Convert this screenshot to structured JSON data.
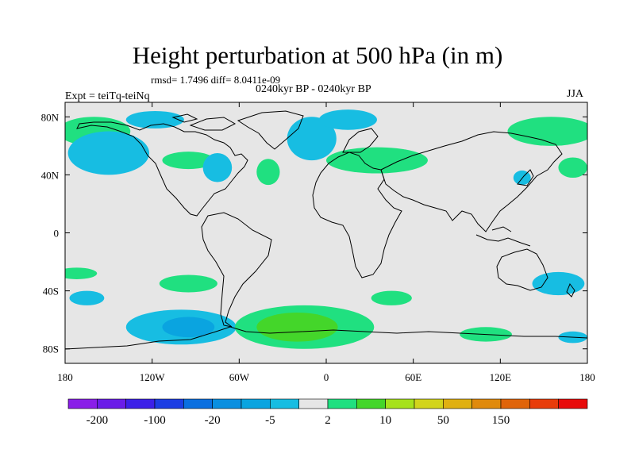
{
  "title": "Height perturbation at 500 hPa (in m)",
  "stats": "rmsd= 1.7496 diff= 8.0411e-09",
  "period": "0240kyr BP - 0240kyr BP",
  "experiment": "Expt = teiTq-teiNq",
  "season": "JJA",
  "axes": {
    "lon_range": [
      -180,
      180
    ],
    "lat_range": [
      -90,
      90
    ],
    "x_ticks": [
      {
        "value": -180,
        "label": "180"
      },
      {
        "value": -120,
        "label": "120W"
      },
      {
        "value": -60,
        "label": "60W"
      },
      {
        "value": 0,
        "label": "0"
      },
      {
        "value": 60,
        "label": "60E"
      },
      {
        "value": 120,
        "label": "120E"
      },
      {
        "value": 180,
        "label": "180"
      }
    ],
    "y_ticks": [
      {
        "value": 80,
        "label": "80N"
      },
      {
        "value": 40,
        "label": "40N"
      },
      {
        "value": 0,
        "label": "0"
      },
      {
        "value": -40,
        "label": "40S"
      },
      {
        "value": -80,
        "label": "80S"
      }
    ]
  },
  "colors": {
    "background": "#e6e6e6",
    "coast": "#000000",
    "light_blue": "#17bde2",
    "mid_blue": "#0aa4e0",
    "light_green": "#20e080",
    "mid_green": "#44d62a"
  },
  "colorbar": {
    "colors": [
      "#8a1ee8",
      "#6a1ce8",
      "#3c20e8",
      "#1c3de3",
      "#0a6fe0",
      "#0a8fe0",
      "#0aa4e0",
      "#17bde2",
      "#e6e6e6",
      "#20e080",
      "#44d62a",
      "#a6e21c",
      "#d2d41c",
      "#e0b012",
      "#e08a0c",
      "#e0640a",
      "#e83c0a",
      "#e80a0a"
    ],
    "labels": [
      {
        "boundary": 1,
        "text": "-200"
      },
      {
        "boundary": 3,
        "text": "-100"
      },
      {
        "boundary": 5,
        "text": "-20"
      },
      {
        "boundary": 7,
        "text": "-5"
      },
      {
        "boundary": 9,
        "text": "2"
      },
      {
        "boundary": 11,
        "text": "10"
      },
      {
        "boundary": 13,
        "text": "50"
      },
      {
        "boundary": 15,
        "text": "150"
      }
    ]
  },
  "anomaly_regions": [
    {
      "name": "n-pacific-positive",
      "color": "light_green",
      "lon": -160,
      "lat": 70,
      "rlon": 25,
      "rlat": 10
    },
    {
      "name": "alaska-negative",
      "color": "light_blue",
      "lon": -150,
      "lat": 55,
      "rlon": 28,
      "rlat": 15
    },
    {
      "name": "arctic-canada-negative",
      "color": "light_blue",
      "lon": -118,
      "lat": 78,
      "rlon": 20,
      "rlat": 6
    },
    {
      "name": "n-america-positive",
      "color": "light_green",
      "lon": -95,
      "lat": 50,
      "rlon": 18,
      "rlat": 6
    },
    {
      "name": "great-lakes-negative",
      "color": "light_blue",
      "lon": -75,
      "lat": 45,
      "rlon": 10,
      "rlat": 10
    },
    {
      "name": "n-atlantic-positive",
      "color": "light_green",
      "lon": -40,
      "lat": 42,
      "rlon": 8,
      "rlat": 9
    },
    {
      "name": "greenland-negative",
      "color": "light_blue",
      "lon": -10,
      "lat": 65,
      "rlon": 17,
      "rlat": 15
    },
    {
      "name": "greenland-sea-negative",
      "color": "light_blue",
      "lon": 15,
      "lat": 78,
      "rlon": 20,
      "rlat": 7
    },
    {
      "name": "eurasia-positive",
      "color": "light_green",
      "lon": 35,
      "lat": 50,
      "rlon": 35,
      "rlat": 9
    },
    {
      "name": "east-asia-negative",
      "color": "light_blue",
      "lon": 135,
      "lat": 38,
      "rlon": 6,
      "rlat": 5
    },
    {
      "name": "siberia-positive",
      "color": "light_green",
      "lon": 155,
      "lat": 70,
      "rlon": 30,
      "rlat": 10
    },
    {
      "name": "dateline-positive",
      "color": "light_green",
      "lon": 170,
      "lat": 45,
      "rlon": 10,
      "rlat": 7
    },
    {
      "name": "s-pacific-positive-west",
      "color": "light_green",
      "lon": -172,
      "lat": -28,
      "rlon": 14,
      "rlat": 4
    },
    {
      "name": "s-pacific-positive",
      "color": "light_green",
      "lon": -95,
      "lat": -35,
      "rlon": 20,
      "rlat": 6
    },
    {
      "name": "s-pacific-negative-west",
      "color": "light_blue",
      "lon": -165,
      "lat": -45,
      "rlon": 12,
      "rlat": 5
    },
    {
      "name": "se-pacific-negative",
      "color": "light_blue",
      "lon": -100,
      "lat": -65,
      "rlon": 38,
      "rlat": 12
    },
    {
      "name": "se-pacific-core",
      "color": "mid_blue",
      "lon": -95,
      "lat": -65,
      "rlon": 18,
      "rlat": 7
    },
    {
      "name": "s-atlantic-positive",
      "color": "light_green",
      "lon": -15,
      "lat": -65,
      "rlon": 48,
      "rlat": 15
    },
    {
      "name": "s-atlantic-core",
      "color": "mid_green",
      "lon": -20,
      "lat": -65,
      "rlon": 28,
      "rlat": 10
    },
    {
      "name": "s-indian-positive",
      "color": "light_green",
      "lon": 45,
      "lat": -45,
      "rlon": 14,
      "rlat": 5
    },
    {
      "name": "s-indian-positive-east",
      "color": "light_green",
      "lon": 110,
      "lat": -70,
      "rlon": 18,
      "rlat": 5
    },
    {
      "name": "australia-negative",
      "color": "light_blue",
      "lon": 160,
      "lat": -35,
      "rlon": 18,
      "rlat": 8
    },
    {
      "name": "s-ocean-negative",
      "color": "light_blue",
      "lon": 170,
      "lat": -72,
      "rlon": 10,
      "rlat": 4
    }
  ]
}
